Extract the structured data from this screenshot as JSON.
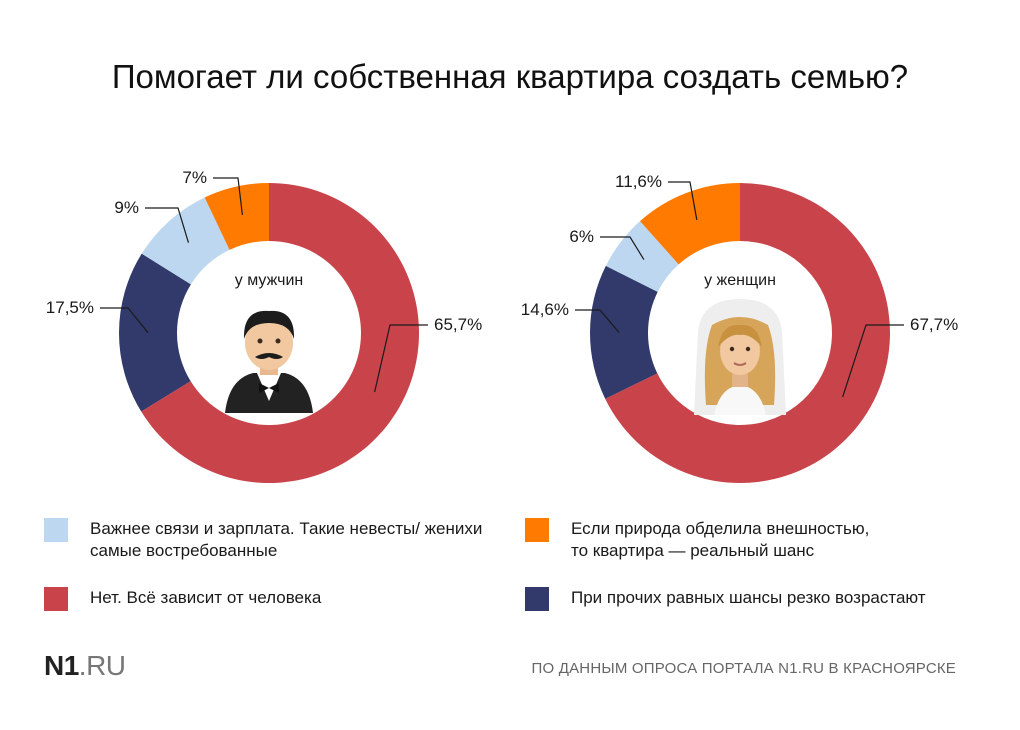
{
  "title": "Помогает ли собственная квартира создать семью?",
  "colors": {
    "light_blue": "#bcd7ef",
    "orange": "#ff7a00",
    "red": "#c8444a",
    "navy": "#323a6c",
    "leader_line": "#1a1a1a"
  },
  "chart_data": [
    {
      "type": "pie",
      "variant": "donut",
      "center_label": "у мужчин",
      "center_icon": "man-in-tuxedo-icon",
      "slices": [
        {
          "category": "Нет. Всё зависит от человека",
          "value": 65.7,
          "label": "65,7%",
          "color": "#c8444a"
        },
        {
          "category": "При прочих равных шансы резко возрастают",
          "value": 17.5,
          "label": "17,5%",
          "color": "#323a6c"
        },
        {
          "category": "Важнее связи и зарплата. Такие невесты/ женихи самые востребованные",
          "value": 9,
          "label": "9%",
          "color": "#bcd7ef"
        },
        {
          "category": "Если природа обделила внешностью, то квартира — реальный шанс",
          "value": 7,
          "label": "7%",
          "color": "#ff7a00"
        }
      ]
    },
    {
      "type": "pie",
      "variant": "donut",
      "center_label": "у женщин",
      "center_icon": "bride-with-veil-icon",
      "slices": [
        {
          "category": "Нет. Всё зависит от человека",
          "value": 67.7,
          "label": "67,7%",
          "color": "#c8444a"
        },
        {
          "category": "При прочих равных шансы резко возрастают",
          "value": 14.6,
          "label": "14,6%",
          "color": "#323a6c"
        },
        {
          "category": "Важнее связи и зарплата. Такие невесты/ женихи самые востребованные",
          "value": 6,
          "label": "6%",
          "color": "#bcd7ef"
        },
        {
          "category": "Если природа обделила внешностью, то квартира — реальный шанс",
          "value": 11.6,
          "label": "11,6%",
          "color": "#ff7a00"
        }
      ]
    }
  ],
  "legend": [
    {
      "label": "Важнее связи и зарплата. Такие невесты/ женихи\nсамые востребованные",
      "color": "#bcd7ef"
    },
    {
      "label": "Если природа обделила внешностью,\nто квартира — реальный шанс",
      "color": "#ff7a00"
    },
    {
      "label": "Нет. Всё зависит от человека",
      "color": "#c8444a"
    },
    {
      "label": "При прочих равных шансы резко возрастают",
      "color": "#323a6c"
    }
  ],
  "footer": {
    "logo_main": "N1",
    "logo_suffix": ".RU",
    "source": "ПО ДАННЫМ ОПРОСА ПОРТАЛА N1.RU В КРАСНОЯРСКЕ"
  }
}
